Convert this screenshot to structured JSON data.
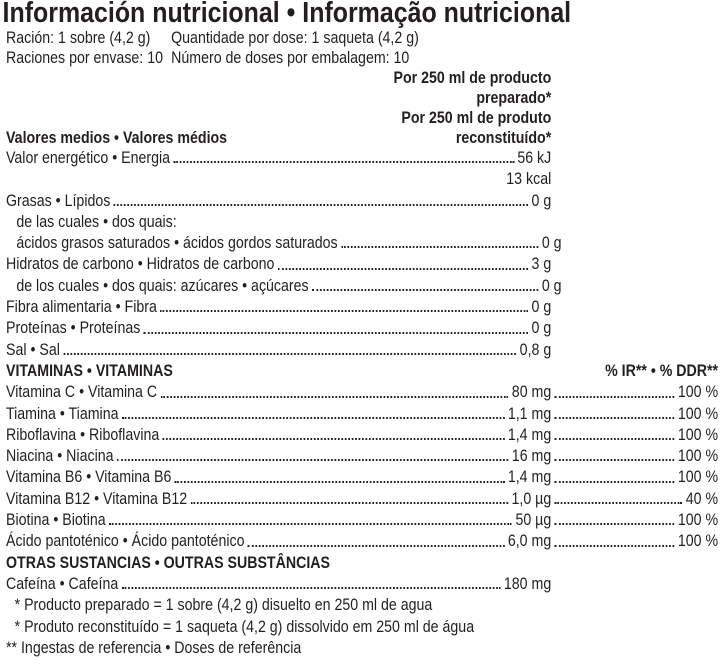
{
  "title": "Información nutricional • Informação nutricional",
  "serving": [
    [
      "Ración: 1 sobre (4,2 g)",
      "Quantidade por dose: 1 saqueta (4,2 g)"
    ],
    [
      "Raciones por envase: 10",
      "Número de doses por embalagem: 10"
    ]
  ],
  "column_header": [
    "Por 250 ml de producto",
    "preparado*",
    "Por 250 ml de produto",
    "reconstituído*"
  ],
  "sections": [
    {
      "title": "Valores medios • Valores médios",
      "rows": [
        {
          "name": "Valor energético • Energia",
          "amounts": [
            "56 kJ",
            "13 kcal"
          ]
        },
        {
          "name": "Grasas • Lípidos",
          "amounts": [
            "0 g"
          ],
          "breakdown": {
            "label": "de las cuales • dos quais:",
            "rows": [
              {
                "name": "ácidos grasos saturados • ácidos gordos saturados",
                "amounts": [
                  "0 g"
                ]
              }
            ]
          }
        },
        {
          "name": "Hidratos de carbono • Hidratos de carbono",
          "amounts": [
            "3 g"
          ],
          "breakdown": {
            "rows": [
              {
                "name": "de los cuales • dos quais: azúcares • açúcares",
                "amounts": [
                  "0 g"
                ]
              }
            ]
          }
        },
        {
          "name": "Fibra alimentaria • Fibra",
          "amounts": [
            "0 g"
          ]
        },
        {
          "name": "Proteínas • Proteínas",
          "amounts": [
            "0 g"
          ]
        },
        {
          "name": "Sal • Sal",
          "amounts": [
            "0,8 g"
          ]
        }
      ]
    },
    {
      "title": "VITAMINAS • VITAMINAS",
      "percent_header": "% IR** • % DDR**",
      "rows": [
        {
          "name": "Vitamina C • Vitamina C",
          "amounts": [
            "80 mg"
          ],
          "percent": "100 %"
        },
        {
          "name": "Tiamina • Tiamina",
          "amounts": [
            "1,1 mg"
          ],
          "percent": "100 %"
        },
        {
          "name": "Riboflavina • Riboflavina",
          "amounts": [
            "1,4 mg"
          ],
          "percent": "100 %"
        },
        {
          "name": "Niacina • Niacina",
          "amounts": [
            "16 mg"
          ],
          "percent": "100 %"
        },
        {
          "name": "Vitamina B6 • Vitamina B6",
          "amounts": [
            "1,4 mg"
          ],
          "percent": "100 %"
        },
        {
          "name": "Vitamina B12 • Vitamina B12",
          "amounts": [
            "1,0 µg"
          ],
          "percent": "40 %"
        },
        {
          "name": "Biotina • Biotina",
          "amounts": [
            "50 µg"
          ],
          "percent": "100 %"
        },
        {
          "name": "Ácido pantoténico • Ácido pantoténico",
          "amounts": [
            "6,0 mg"
          ],
          "percent": "100 %"
        }
      ]
    },
    {
      "title": "OTRAS SUSTANCIAS • OUTRAS SUBSTÂNCIAS",
      "rows": [
        {
          "name": "Cafeína • Cafeína",
          "amounts": [
            "180 mg"
          ]
        }
      ]
    }
  ],
  "footnotes": [
    "* Producto preparado = 1 sobre (4,2 g) disuelto en 250 ml de agua",
    "* Produto reconstituído = 1 saqueta (4,2 g) dissolvido em 250 ml de água",
    "** Ingestas de referencia • Doses de referência"
  ]
}
